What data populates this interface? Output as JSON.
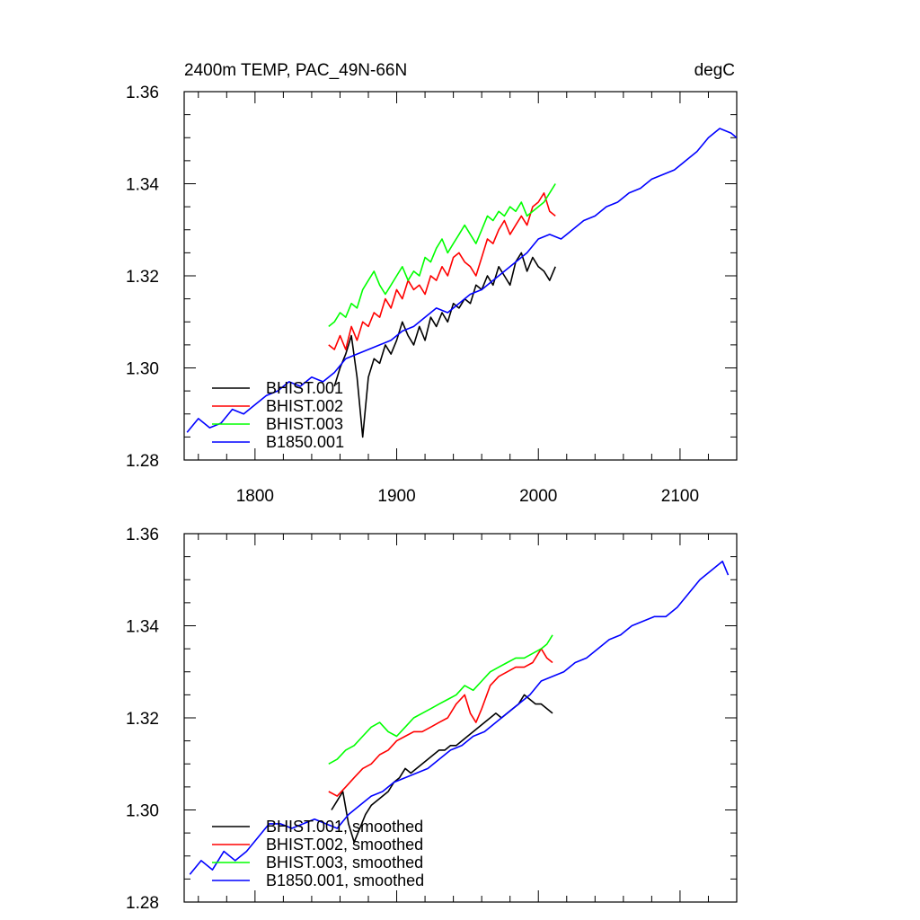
{
  "chart_data": [
    {
      "type": "line",
      "title": "2400m TEMP, PAC_49N-66N",
      "units": "degC",
      "xlabel": "",
      "ylabel": "",
      "xlim": [
        1750,
        2140
      ],
      "ylim": [
        1.28,
        1.36
      ],
      "xticks": [
        1800,
        1900,
        2000,
        2100
      ],
      "xtick_labels": [
        "1800",
        "1900",
        "2000",
        "2100"
      ],
      "yticks": [
        1.28,
        1.3,
        1.32,
        1.34,
        1.36
      ],
      "ytick_labels": [
        "1.28",
        "1.30",
        "1.32",
        "1.34",
        "1.36"
      ],
      "legend": "lower-left",
      "series": [
        {
          "name": "BHIST.001",
          "color": "#000000",
          "x": [
            1856,
            1860,
            1864,
            1868,
            1872,
            1876,
            1880,
            1884,
            1888,
            1892,
            1896,
            1900,
            1904,
            1908,
            1912,
            1916,
            1920,
            1924,
            1928,
            1932,
            1936,
            1940,
            1944,
            1948,
            1952,
            1956,
            1960,
            1964,
            1968,
            1972,
            1976,
            1980,
            1984,
            1988,
            1992,
            1996,
            2000,
            2004,
            2008,
            2012
          ],
          "y": [
            1.296,
            1.3,
            1.303,
            1.307,
            1.298,
            1.285,
            1.298,
            1.302,
            1.301,
            1.305,
            1.303,
            1.306,
            1.31,
            1.307,
            1.305,
            1.309,
            1.306,
            1.311,
            1.309,
            1.312,
            1.31,
            1.314,
            1.313,
            1.315,
            1.314,
            1.318,
            1.317,
            1.32,
            1.318,
            1.322,
            1.32,
            1.318,
            1.323,
            1.325,
            1.321,
            1.324,
            1.322,
            1.321,
            1.319,
            1.322
          ]
        },
        {
          "name": "BHIST.002",
          "color": "#ff0000",
          "x": [
            1852,
            1856,
            1860,
            1864,
            1868,
            1872,
            1876,
            1880,
            1884,
            1888,
            1892,
            1896,
            1900,
            1904,
            1908,
            1912,
            1916,
            1920,
            1924,
            1928,
            1932,
            1936,
            1940,
            1944,
            1948,
            1952,
            1956,
            1960,
            1964,
            1968,
            1972,
            1976,
            1980,
            1984,
            1988,
            1992,
            1996,
            2000,
            2004,
            2008,
            2012
          ],
          "y": [
            1.305,
            1.304,
            1.307,
            1.304,
            1.309,
            1.306,
            1.31,
            1.309,
            1.312,
            1.311,
            1.315,
            1.313,
            1.317,
            1.315,
            1.319,
            1.317,
            1.318,
            1.316,
            1.32,
            1.319,
            1.322,
            1.32,
            1.324,
            1.325,
            1.323,
            1.322,
            1.32,
            1.324,
            1.328,
            1.327,
            1.33,
            1.332,
            1.329,
            1.331,
            1.333,
            1.331,
            1.335,
            1.336,
            1.338,
            1.334,
            1.333
          ]
        },
        {
          "name": "BHIST.003",
          "color": "#00ff00",
          "x": [
            1852,
            1856,
            1860,
            1864,
            1868,
            1872,
            1876,
            1880,
            1884,
            1888,
            1892,
            1896,
            1900,
            1904,
            1908,
            1912,
            1916,
            1920,
            1924,
            1928,
            1932,
            1936,
            1940,
            1944,
            1948,
            1952,
            1956,
            1960,
            1964,
            1968,
            1972,
            1976,
            1980,
            1984,
            1988,
            1992,
            1996,
            2000,
            2004,
            2008,
            2012
          ],
          "y": [
            1.309,
            1.31,
            1.312,
            1.311,
            1.314,
            1.313,
            1.317,
            1.319,
            1.321,
            1.318,
            1.316,
            1.318,
            1.32,
            1.322,
            1.319,
            1.321,
            1.32,
            1.324,
            1.323,
            1.326,
            1.328,
            1.325,
            1.327,
            1.329,
            1.331,
            1.329,
            1.327,
            1.33,
            1.333,
            1.332,
            1.334,
            1.333,
            1.335,
            1.334,
            1.336,
            1.333,
            1.334,
            1.335,
            1.336,
            1.338,
            1.34
          ]
        },
        {
          "name": "B1850.001",
          "color": "#0000ff",
          "x": [
            1752,
            1760,
            1768,
            1776,
            1784,
            1792,
            1800,
            1808,
            1816,
            1824,
            1832,
            1840,
            1848,
            1856,
            1864,
            1872,
            1880,
            1888,
            1896,
            1904,
            1912,
            1920,
            1928,
            1936,
            1944,
            1952,
            1960,
            1968,
            1976,
            1984,
            1992,
            2000,
            2008,
            2016,
            2024,
            2032,
            2040,
            2048,
            2056,
            2064,
            2072,
            2080,
            2088,
            2096,
            2104,
            2112,
            2120,
            2128,
            2136,
            2140
          ],
          "y": [
            1.286,
            1.289,
            1.287,
            1.288,
            1.291,
            1.29,
            1.292,
            1.294,
            1.295,
            1.297,
            1.296,
            1.298,
            1.297,
            1.299,
            1.302,
            1.303,
            1.304,
            1.305,
            1.306,
            1.308,
            1.309,
            1.311,
            1.313,
            1.312,
            1.314,
            1.316,
            1.317,
            1.319,
            1.321,
            1.323,
            1.325,
            1.328,
            1.329,
            1.328,
            1.33,
            1.332,
            1.333,
            1.335,
            1.336,
            1.338,
            1.339,
            1.341,
            1.342,
            1.343,
            1.345,
            1.347,
            1.35,
            1.352,
            1.351,
            1.35
          ]
        }
      ]
    },
    {
      "type": "line",
      "title": "",
      "xlabel": "",
      "ylabel": "",
      "xlim": [
        1750,
        2140
      ],
      "ylim": [
        1.28,
        1.36
      ],
      "xticks": [
        1800,
        1900,
        2000,
        2100
      ],
      "yticks": [
        1.28,
        1.3,
        1.32,
        1.34,
        1.36
      ],
      "ytick_labels": [
        "1.28",
        "1.30",
        "1.32",
        "1.34",
        "1.36"
      ],
      "legend": "lower-left",
      "series": [
        {
          "name": "BHIST.001, smoothed",
          "color": "#000000",
          "x": [
            1854,
            1858,
            1862,
            1866,
            1870,
            1874,
            1878,
            1882,
            1886,
            1890,
            1894,
            1898,
            1902,
            1906,
            1910,
            1914,
            1918,
            1922,
            1926,
            1930,
            1934,
            1938,
            1942,
            1946,
            1950,
            1954,
            1958,
            1962,
            1966,
            1970,
            1974,
            1978,
            1982,
            1986,
            1990,
            1994,
            1998,
            2002,
            2006,
            2010
          ],
          "y": [
            1.3,
            1.302,
            1.304,
            1.297,
            1.293,
            1.296,
            1.299,
            1.301,
            1.302,
            1.303,
            1.304,
            1.306,
            1.307,
            1.309,
            1.308,
            1.309,
            1.31,
            1.311,
            1.312,
            1.313,
            1.313,
            1.314,
            1.314,
            1.315,
            1.316,
            1.317,
            1.318,
            1.319,
            1.32,
            1.321,
            1.32,
            1.321,
            1.322,
            1.323,
            1.325,
            1.324,
            1.323,
            1.323,
            1.322,
            1.321
          ]
        },
        {
          "name": "BHIST.002, smoothed",
          "color": "#ff0000",
          "x": [
            1852,
            1858,
            1864,
            1870,
            1876,
            1882,
            1888,
            1894,
            1900,
            1906,
            1912,
            1918,
            1924,
            1930,
            1936,
            1942,
            1948,
            1952,
            1956,
            1960,
            1966,
            1972,
            1978,
            1984,
            1990,
            1996,
            2002,
            2006,
            2010
          ],
          "y": [
            1.304,
            1.303,
            1.305,
            1.307,
            1.309,
            1.31,
            1.312,
            1.313,
            1.315,
            1.316,
            1.317,
            1.317,
            1.318,
            1.319,
            1.32,
            1.323,
            1.325,
            1.321,
            1.319,
            1.322,
            1.327,
            1.329,
            1.33,
            1.331,
            1.331,
            1.332,
            1.335,
            1.333,
            1.332
          ]
        },
        {
          "name": "BHIST.003, smoothed",
          "color": "#00ff00",
          "x": [
            1852,
            1858,
            1864,
            1870,
            1876,
            1882,
            1888,
            1894,
            1900,
            1906,
            1912,
            1918,
            1924,
            1930,
            1936,
            1942,
            1948,
            1954,
            1960,
            1966,
            1972,
            1978,
            1984,
            1990,
            1996,
            2002,
            2006,
            2010
          ],
          "y": [
            1.31,
            1.311,
            1.313,
            1.314,
            1.316,
            1.318,
            1.319,
            1.317,
            1.316,
            1.318,
            1.32,
            1.321,
            1.322,
            1.323,
            1.324,
            1.325,
            1.327,
            1.326,
            1.328,
            1.33,
            1.331,
            1.332,
            1.333,
            1.333,
            1.334,
            1.335,
            1.336,
            1.338
          ]
        },
        {
          "name": "B1850.001, smoothed",
          "color": "#0000ff",
          "x": [
            1754,
            1762,
            1770,
            1778,
            1786,
            1794,
            1802,
            1810,
            1818,
            1826,
            1834,
            1842,
            1850,
            1858,
            1866,
            1874,
            1882,
            1890,
            1898,
            1906,
            1914,
            1922,
            1930,
            1938,
            1946,
            1954,
            1962,
            1970,
            1978,
            1986,
            1994,
            2002,
            2010,
            2018,
            2026,
            2034,
            2042,
            2050,
            2058,
            2066,
            2074,
            2082,
            2090,
            2098,
            2106,
            2114,
            2122,
            2130,
            2134
          ],
          "y": [
            1.286,
            1.289,
            1.287,
            1.291,
            1.289,
            1.291,
            1.294,
            1.297,
            1.297,
            1.296,
            1.297,
            1.298,
            1.297,
            1.296,
            1.299,
            1.301,
            1.303,
            1.304,
            1.306,
            1.307,
            1.308,
            1.309,
            1.311,
            1.313,
            1.314,
            1.316,
            1.317,
            1.319,
            1.321,
            1.323,
            1.325,
            1.328,
            1.329,
            1.33,
            1.332,
            1.333,
            1.335,
            1.337,
            1.338,
            1.34,
            1.341,
            1.342,
            1.342,
            1.344,
            1.347,
            1.35,
            1.352,
            1.354,
            1.351
          ]
        }
      ]
    }
  ]
}
